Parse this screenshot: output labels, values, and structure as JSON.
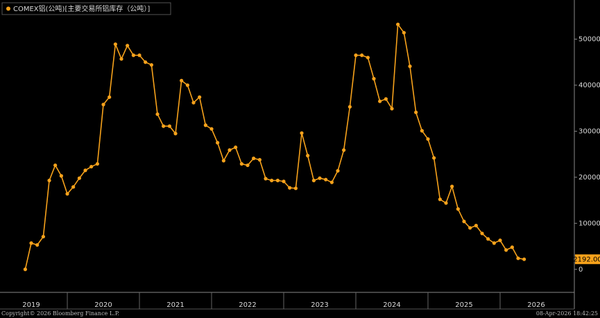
{
  "chart_data": {
    "type": "line",
    "title": "COMEX铝(公吨)[主要交易所铝库存（公吨）]",
    "copyright": "Copyright© 2026 Bloomberg Finance L.P.",
    "timestamp": "08-Apr-2026 18:42:25",
    "x": [
      2019.417,
      2019.5,
      2019.583,
      2019.667,
      2019.75,
      2019.833,
      2019.917,
      2020.0,
      2020.083,
      2020.167,
      2020.25,
      2020.333,
      2020.417,
      2020.5,
      2020.583,
      2020.667,
      2020.75,
      2020.833,
      2020.917,
      2021.0,
      2021.083,
      2021.167,
      2021.25,
      2021.333,
      2021.417,
      2021.5,
      2021.583,
      2021.667,
      2021.75,
      2021.833,
      2021.917,
      2022.0,
      2022.083,
      2022.167,
      2022.25,
      2022.333,
      2022.417,
      2022.5,
      2022.583,
      2022.667,
      2022.75,
      2022.833,
      2022.917,
      2023.0,
      2023.083,
      2023.167,
      2023.25,
      2023.333,
      2023.417,
      2023.5,
      2023.583,
      2023.667,
      2023.75,
      2023.833,
      2023.917,
      2024.0,
      2024.083,
      2024.167,
      2024.25,
      2024.333,
      2024.417,
      2024.5,
      2024.583,
      2024.667,
      2024.75,
      2024.833,
      2024.917,
      2025.0,
      2025.083,
      2025.167,
      2025.25,
      2025.333,
      2025.417,
      2025.5,
      2025.583,
      2025.667,
      2025.75,
      2025.833,
      2025.917,
      2026.0,
      2026.083,
      2026.167,
      2026.25,
      2026.333
    ],
    "series": [
      {
        "name": "COMEX铝(公吨)",
        "color": "#f7a21b",
        "values": [
          0,
          5700,
          5300,
          7100,
          19300,
          22600,
          20300,
          16400,
          17900,
          19800,
          21500,
          22300,
          22900,
          35800,
          37400,
          48900,
          45700,
          48600,
          46500,
          46500,
          45000,
          44400,
          33700,
          31100,
          31100,
          29500,
          41000,
          40000,
          36200,
          37400,
          31300,
          30500,
          27500,
          23600,
          25900,
          26500,
          22900,
          22600,
          24100,
          23800,
          19700,
          19300,
          19300,
          19100,
          17700,
          17600,
          29600,
          24700,
          19300,
          19800,
          19500,
          18900,
          21400,
          25900,
          35300,
          46500,
          46500,
          46000,
          41400,
          36500,
          37000,
          34900,
          53200,
          51400,
          44100,
          34100,
          30100,
          28300,
          24200,
          15200,
          14400,
          18000,
          13100,
          10400,
          9000,
          9500,
          7800,
          6600,
          5700,
          6300,
          4200,
          4800,
          2400,
          2192
        ]
      }
    ],
    "last_value": {
      "value": 2192,
      "label": "2192.00"
    },
    "xlim": [
      2019.067,
      2027.029
    ],
    "xticks": [
      {
        "value": 2019,
        "label": "2019"
      },
      {
        "value": 2020,
        "label": "2020"
      },
      {
        "value": 2021,
        "label": "2021"
      },
      {
        "value": 2022,
        "label": "2022"
      },
      {
        "value": 2023,
        "label": "2023"
      },
      {
        "value": 2024,
        "label": "2024"
      },
      {
        "value": 2025,
        "label": "2025"
      },
      {
        "value": 2026,
        "label": "2026"
      }
    ],
    "ylim": [
      -5000,
      58500
    ],
    "yticks": [
      0,
      10000,
      20000,
      30000,
      40000,
      50000
    ],
    "grid": false
  }
}
